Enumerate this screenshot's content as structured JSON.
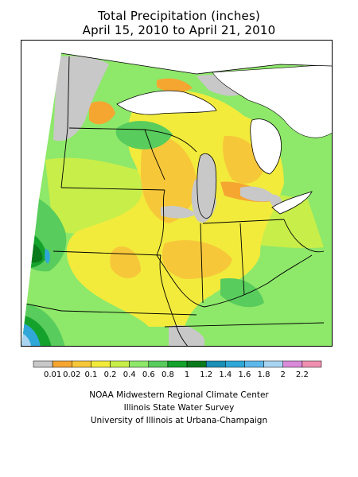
{
  "title": {
    "line1": "Total Precipitation (inches)",
    "line2": "April 15, 2010 to April 21, 2010"
  },
  "legend": {
    "units": "inches",
    "bins": [
      {
        "label": "",
        "color": "#c8c8c8"
      },
      {
        "label": "0.01",
        "color": "#f5a631"
      },
      {
        "label": "0.02",
        "color": "#f7c73a"
      },
      {
        "label": "0.1",
        "color": "#f2eb3c"
      },
      {
        "label": "0.2",
        "color": "#c8ee4a"
      },
      {
        "label": "0.4",
        "color": "#8ee86a"
      },
      {
        "label": "0.6",
        "color": "#58cc5c"
      },
      {
        "label": "0.8",
        "color": "#14a22c"
      },
      {
        "label": "1",
        "color": "#0a7a1c"
      },
      {
        "label": "1.2",
        "color": "#1b8fb5"
      },
      {
        "label": "1.4",
        "color": "#2fa8d8"
      },
      {
        "label": "1.6",
        "color": "#5cb8ea"
      },
      {
        "label": "1.8",
        "color": "#a8d4f2"
      },
      {
        "label": "2",
        "color": "#d98ad9"
      },
      {
        "label": "2.2",
        "color": "#f08fb0"
      }
    ],
    "tick_labels": [
      "0.01",
      "0.02",
      "0.1",
      "0.2",
      "0.4",
      "0.6",
      "0.8",
      "1",
      "1.2",
      "1.4",
      "1.6",
      "1.8",
      "2",
      "2.2"
    ]
  },
  "credits": {
    "line1": "NOAA Midwestern Regional Climate Center",
    "line2": "Illinois State Water Survey",
    "line3": "University of Illinois at Urbana-Champaign"
  },
  "map": {
    "region": "Midwest United States",
    "colors": {
      "missing": "#c8c8c8",
      "orange": "#f5a631",
      "gold": "#f7c73a",
      "yellow": "#f2eb3c",
      "lime": "#c8ee4a",
      "lightgreen": "#8ee86a",
      "green": "#58cc5c",
      "darkgreen": "#14a22c",
      "darkestgreen": "#0a7a1c",
      "blue": "#2fa8d8",
      "lightblue": "#a8d4f2",
      "water": "#ffffff"
    }
  }
}
